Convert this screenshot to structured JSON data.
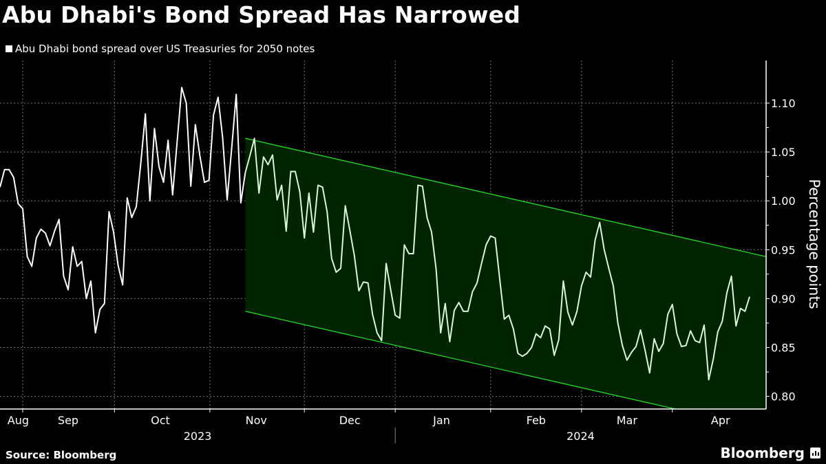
{
  "title": "Abu Dhabi's Bond Spread Has Narrowed",
  "legend": "Abu Dhabi bond spread over US Treasuries for 2050 notes",
  "footer": {
    "source": "Source: Bloomberg",
    "logo": "Bloomberg"
  },
  "colors": {
    "line": "#ffffff",
    "line_in_channel": "#d9f7d9",
    "channel_fill": "#002400",
    "channel_edge": "#22dd22",
    "grid": "#777777"
  },
  "chart_data": {
    "type": "line",
    "title": "Abu Dhabi's Bond Spread Has Narrowed",
    "xlabel": "",
    "ylabel": "Percentage points",
    "ylim": [
      0.786,
      1.144
    ],
    "yticks": [
      0.8,
      0.85,
      0.9,
      0.95,
      1.0,
      1.05,
      1.1
    ],
    "ytick_labels": [
      "0.80",
      "0.85",
      "0.90",
      "0.95",
      "1.00",
      "1.05",
      "1.10"
    ],
    "grid": true,
    "legend_position": "top-left",
    "x_unit": "observation index",
    "month_boundaries": [
      5,
      25.2,
      46.2,
      67,
      87,
      108,
      128,
      148
    ],
    "month_labels": [
      {
        "label": "Aug",
        "x": 4
      },
      {
        "label": "Sep",
        "x": 15
      },
      {
        "label": "Oct",
        "x": 35.3
      },
      {
        "label": "Nov",
        "x": 56.4
      },
      {
        "label": "Dec",
        "x": 77
      },
      {
        "label": "Jan",
        "x": 97.2
      },
      {
        "label": "Feb",
        "x": 118
      },
      {
        "label": "Mar",
        "x": 138
      },
      {
        "label": "Apr",
        "x": 158.6
      }
    ],
    "year_labels": [
      {
        "label": "2023",
        "x": 43.5
      },
      {
        "label": "2024",
        "x": 127.8
      }
    ],
    "year_separator": 87,
    "channel": {
      "x_start": 54,
      "x_end": 168.6,
      "upper": [
        1.064,
        0.943
      ],
      "lower": [
        0.887,
        0.766
      ]
    },
    "series": [
      {
        "name": "Abu Dhabi bond spread over US Treasuries for 2050 notes",
        "values": [
          1.014,
          1.032,
          1.032,
          1.024,
          0.997,
          0.992,
          0.943,
          0.933,
          0.962,
          0.971,
          0.967,
          0.954,
          0.969,
          0.981,
          0.923,
          0.909,
          0.953,
          0.933,
          0.938,
          0.9,
          0.918,
          0.865,
          0.889,
          0.895,
          0.989,
          0.968,
          0.934,
          0.914,
          1.003,
          0.983,
          0.994,
          1.039,
          1.089,
          1.0,
          1.074,
          1.035,
          1.019,
          1.062,
          1.006,
          1.061,
          1.116,
          1.1,
          1.015,
          1.078,
          1.046,
          1.019,
          1.021,
          1.088,
          1.106,
          1.065,
          1.001,
          1.054,
          1.109,
          0.998,
          1.029,
          1.046,
          1.064,
          1.008,
          1.045,
          1.037,
          1.047,
          1.001,
          1.016,
          0.969,
          1.03,
          1.03,
          1.009,
          0.962,
          1.008,
          0.968,
          1.016,
          1.014,
          0.989,
          0.941,
          0.927,
          0.931,
          0.995,
          0.97,
          0.944,
          0.908,
          0.917,
          0.916,
          0.884,
          0.865,
          0.857,
          0.936,
          0.909,
          0.883,
          0.88,
          0.955,
          0.946,
          0.946,
          1.016,
          1.015,
          0.983,
          0.968,
          0.93,
          0.865,
          0.895,
          0.856,
          0.888,
          0.896,
          0.887,
          0.887,
          0.907,
          0.916,
          0.936,
          0.955,
          0.964,
          0.962,
          0.92,
          0.879,
          0.883,
          0.869,
          0.844,
          0.841,
          0.844,
          0.85,
          0.864,
          0.86,
          0.872,
          0.869,
          0.842,
          0.858,
          0.918,
          0.886,
          0.873,
          0.887,
          0.913,
          0.927,
          0.922,
          0.96,
          0.978,
          0.95,
          0.931,
          0.913,
          0.875,
          0.852,
          0.837,
          0.845,
          0.851,
          0.868,
          0.847,
          0.824,
          0.859,
          0.846,
          0.854,
          0.884,
          0.894,
          0.864,
          0.851,
          0.852,
          0.867,
          0.857,
          0.855,
          0.873,
          0.817,
          0.838,
          0.866,
          0.877,
          0.906,
          0.923,
          0.872,
          0.89,
          0.887,
          0.902
        ]
      }
    ]
  }
}
